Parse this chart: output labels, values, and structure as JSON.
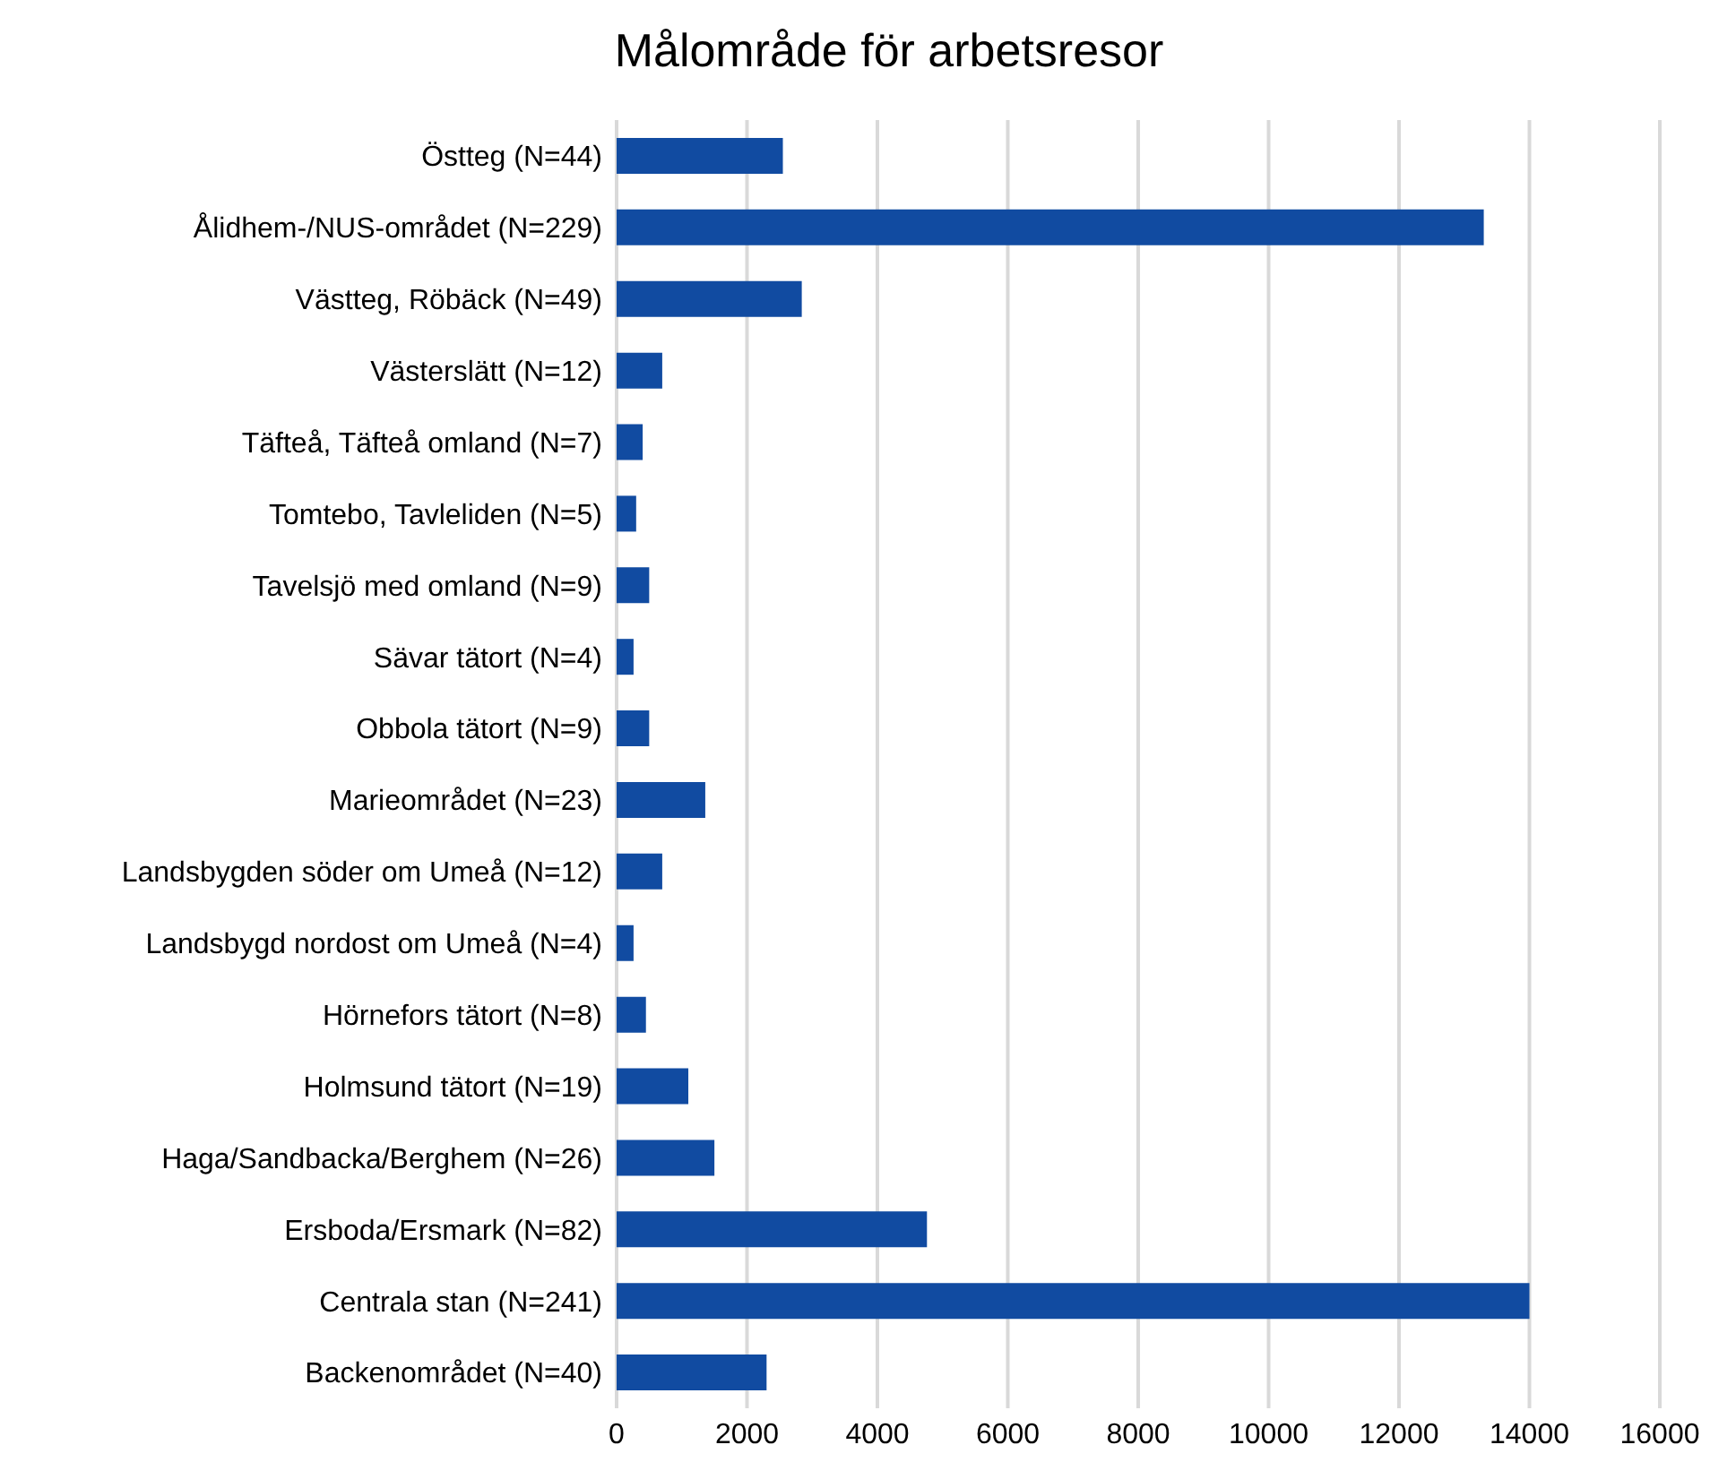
{
  "chart_data": {
    "type": "bar",
    "orientation": "horizontal",
    "title": "Målområde för arbetsresor",
    "categories": [
      "Östteg (N=44)",
      "Ålidhem-/NUS-området (N=229)",
      "Västteg, Röbäck (N=49)",
      "Västerslätt (N=12)",
      "Täfteå, Täfteå omland (N=7)",
      "Tomtebo, Tavleliden (N=5)",
      "Tavelsjö med omland (N=9)",
      "Sävar tätort (N=4)",
      "Obbola tätort (N=9)",
      "Marieområdet (N=23)",
      "Landsbygden söder om Umeå (N=12)",
      "Landsbygd nordost om Umeå (N=4)",
      "Hörnefors tätort (N=8)",
      "Holmsund tätort (N=19)",
      "Haga/Sandbacka/Berghem (N=26)",
      "Ersboda/Ersmark (N=82)",
      "Centrala stan (N=241)",
      "Backenområdet (N=40)"
    ],
    "values": [
      2550,
      13300,
      2840,
      700,
      400,
      300,
      500,
      260,
      500,
      1360,
      700,
      260,
      450,
      1100,
      1500,
      4760,
      14000,
      2300
    ],
    "color": "#114ba1",
    "xlim": [
      0,
      16000
    ],
    "xticks": [
      0,
      2000,
      4000,
      6000,
      8000,
      10000,
      12000,
      14000,
      16000
    ],
    "grid": "x",
    "legend": false
  }
}
